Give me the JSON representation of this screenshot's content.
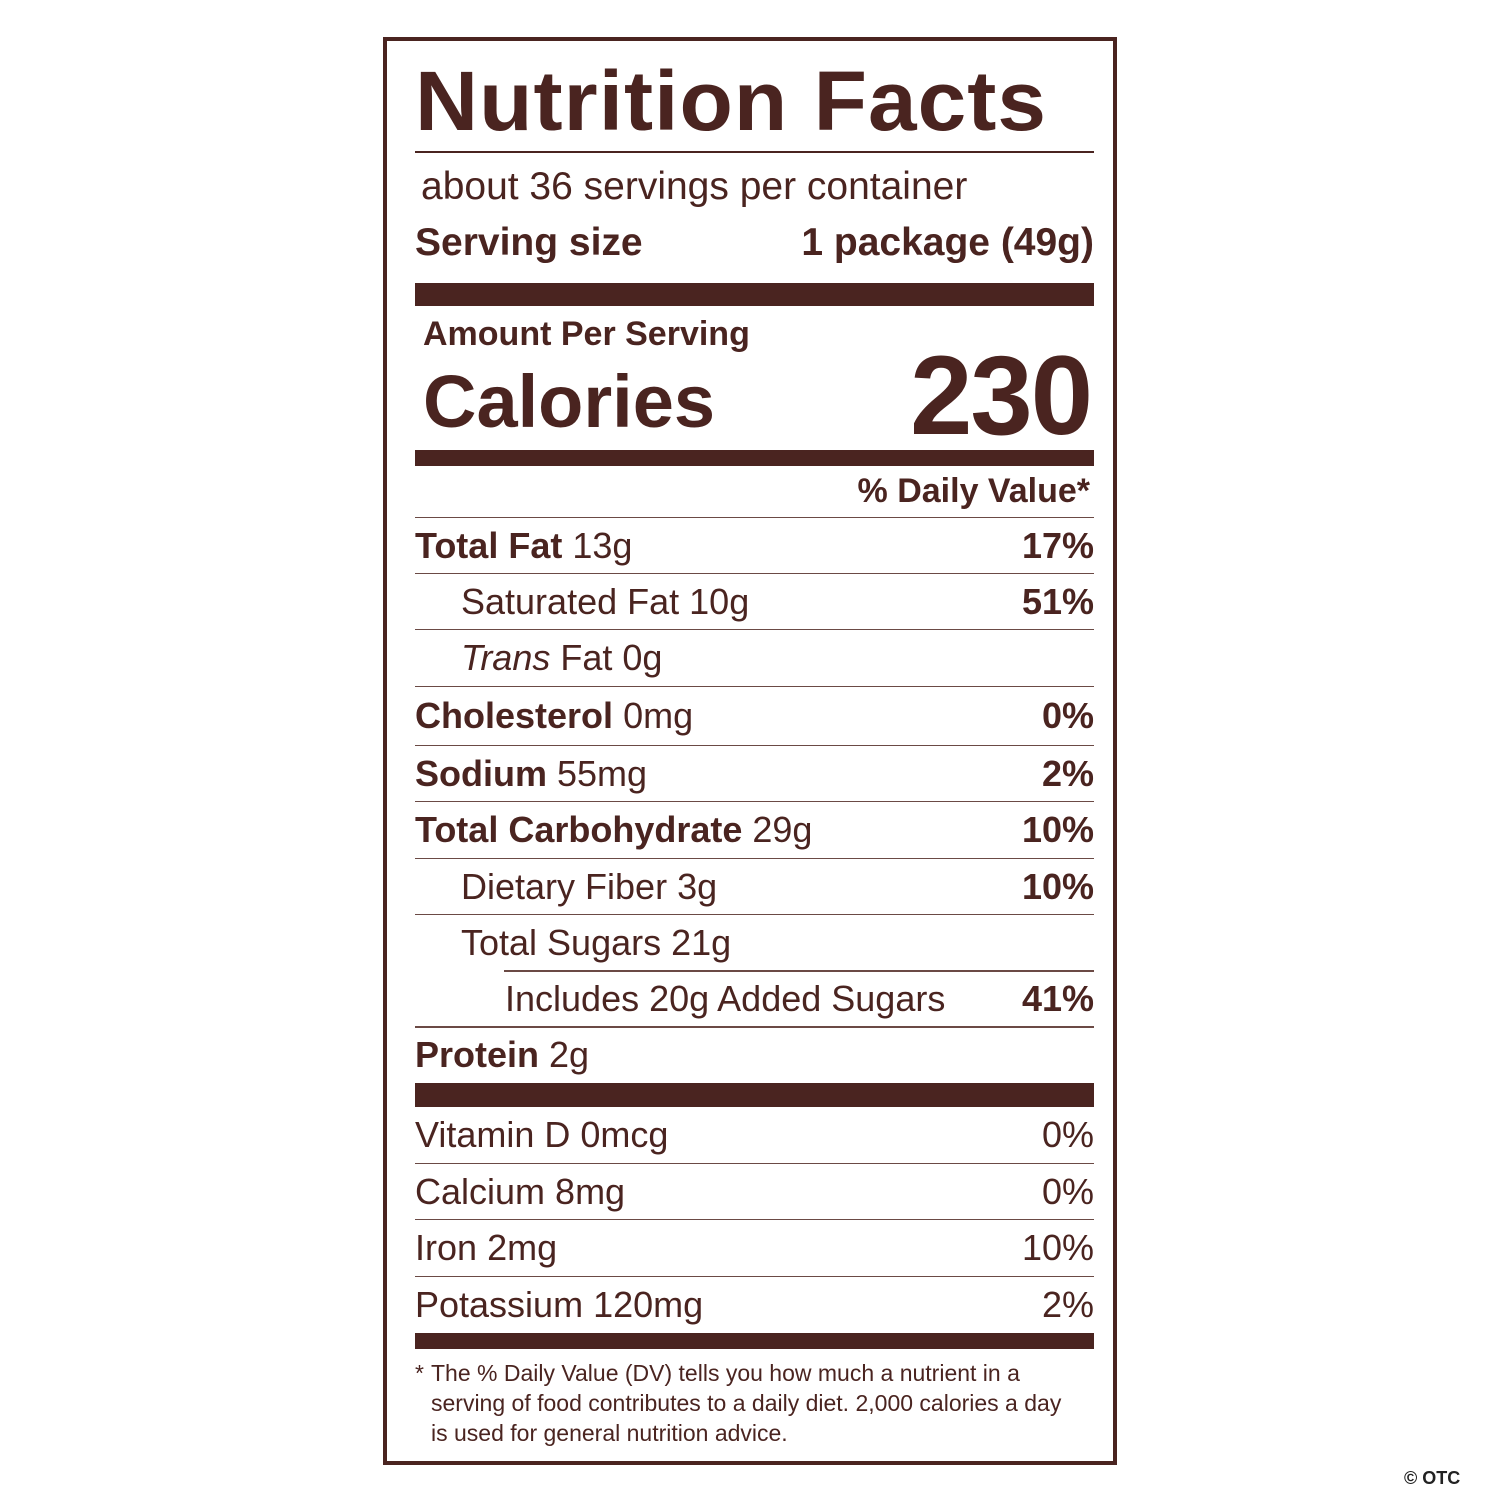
{
  "title": "Nutrition Facts",
  "servings_per_container": "about 36 servings per container",
  "serving_size_label": "Serving size",
  "serving_size_value": "1 package (49g)",
  "amount_per_serving": "Amount Per Serving",
  "calories_label": "Calories",
  "calories_value": "230",
  "daily_value_header": "% Daily Value*",
  "nutrients": [
    {
      "name": "Total Fat",
      "amount": "13g",
      "dv": "17%"
    },
    {
      "name": "Saturated Fat",
      "amount": "10g",
      "dv": "51%"
    },
    {
      "name": "Trans",
      "name_rest": "Fat",
      "amount": "0g",
      "dv": ""
    },
    {
      "name": "Cholesterol",
      "amount": "0mg",
      "dv": "0%"
    },
    {
      "name": "Sodium",
      "amount": "55mg",
      "dv": "2%"
    },
    {
      "name": "Total Carbohydrate",
      "amount": "29g",
      "dv": "10%"
    },
    {
      "name": "Dietary Fiber",
      "amount": "3g",
      "dv": "10%"
    },
    {
      "name": "Total Sugars",
      "amount": "21g",
      "dv": ""
    },
    {
      "name": "Includes 20g Added Sugars",
      "amount": "",
      "dv": "41%"
    },
    {
      "name": "Protein",
      "amount": "2g",
      "dv": ""
    }
  ],
  "vitamins": [
    {
      "name": "Vitamin D",
      "amount": "0mcg",
      "dv": "0%"
    },
    {
      "name": "Calcium",
      "amount": "8mg",
      "dv": "0%"
    },
    {
      "name": "Iron",
      "amount": "2mg",
      "dv": "10%"
    },
    {
      "name": "Potassium",
      "amount": "120mg",
      "dv": "2%"
    }
  ],
  "footnote_marker": "*",
  "footnote": "The % Daily Value (DV) tells you how much a nutrient in a serving of food contributes to a daily diet. 2,000 calories a day is used for general nutrition advice.",
  "watermark": "© OTC",
  "colors": {
    "ink": "#4a2420",
    "background": "#ffffff"
  }
}
